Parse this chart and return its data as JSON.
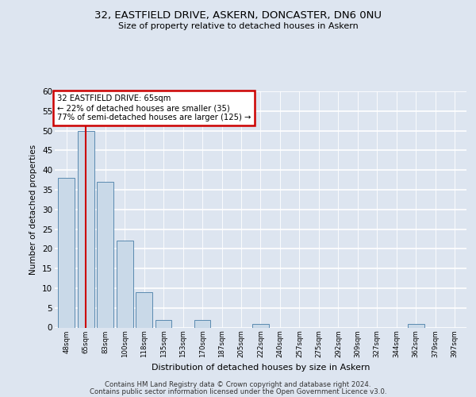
{
  "title1": "32, EASTFIELD DRIVE, ASKERN, DONCASTER, DN6 0NU",
  "title2": "Size of property relative to detached houses in Askern",
  "xlabel": "Distribution of detached houses by size in Askern",
  "ylabel": "Number of detached properties",
  "categories": [
    "48sqm",
    "65sqm",
    "83sqm",
    "100sqm",
    "118sqm",
    "135sqm",
    "153sqm",
    "170sqm",
    "187sqm",
    "205sqm",
    "222sqm",
    "240sqm",
    "257sqm",
    "275sqm",
    "292sqm",
    "309sqm",
    "327sqm",
    "344sqm",
    "362sqm",
    "379sqm",
    "397sqm"
  ],
  "values": [
    38,
    50,
    37,
    22,
    9,
    2,
    0,
    2,
    0,
    0,
    1,
    0,
    0,
    0,
    0,
    0,
    0,
    0,
    1,
    0,
    0
  ],
  "bar_color": "#c9d9e8",
  "bar_edge_color": "#5a8ab0",
  "vline_x": 1,
  "vline_color": "#cc0000",
  "annotation_title": "32 EASTFIELD DRIVE: 65sqm",
  "annotation_line1": "← 22% of detached houses are smaller (35)",
  "annotation_line2": "77% of semi-detached houses are larger (125) →",
  "annotation_box_color": "#cc0000",
  "ylim": [
    0,
    60
  ],
  "yticks": [
    0,
    5,
    10,
    15,
    20,
    25,
    30,
    35,
    40,
    45,
    50,
    55,
    60
  ],
  "footer1": "Contains HM Land Registry data © Crown copyright and database right 2024.",
  "footer2": "Contains public sector information licensed under the Open Government Licence v3.0.",
  "bg_color": "#dde5f0",
  "plot_bg_color": "#dde5f0"
}
